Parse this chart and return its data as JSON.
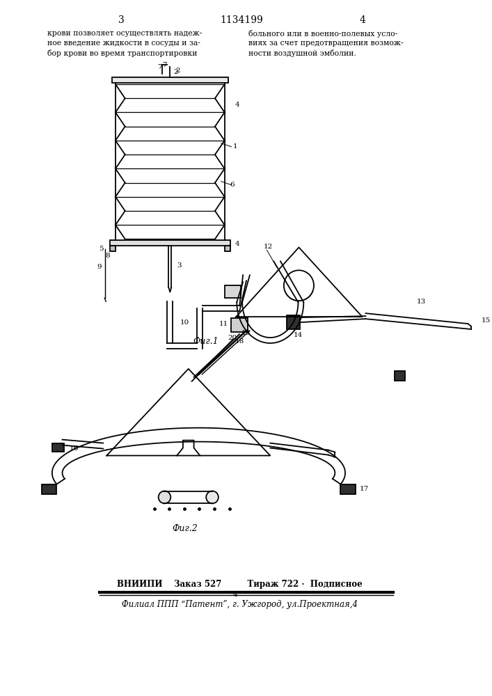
{
  "page_width": 7.07,
  "page_height": 10.0,
  "bg_color": "#ffffff",
  "header_left_num": "3",
  "header_center_num": "1134199",
  "header_right_num": "4",
  "text_col1_line1": "крови позволяет осуществлять надеж-",
  "text_col1_line2": "ное введение жидкости в сосуды и за-",
  "text_col1_line3": "бор крови во время транспортировки",
  "text_col2_line1": "больного или в военно-полевых усло-",
  "text_col2_line2": "виях за счет предотвращения возмож-",
  "text_col2_line3": "ности воздушной эмболии.",
  "fig1_label": "Фиг.1",
  "fig2_label": "Фиг.2",
  "footer_line1": "ВНИИПИ    Заказ 527         Тираж 722 ·  Подписное",
  "footer_line2": "Филиал ППП “Патент”, г. Ужгород, ул.Проектная,4"
}
